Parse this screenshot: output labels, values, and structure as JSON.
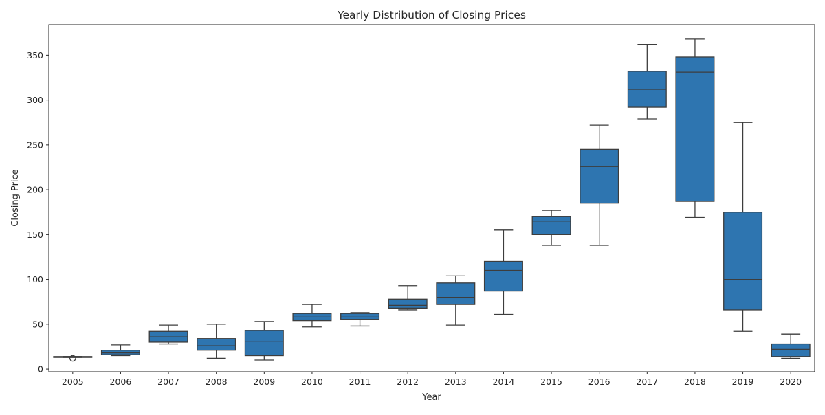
{
  "chart_data": {
    "type": "box",
    "title": "Yearly Distribution of Closing Prices",
    "xlabel": "Year",
    "ylabel": "Closing Price",
    "ylim": [
      -3,
      384
    ],
    "y_ticks": [
      0,
      50,
      100,
      150,
      200,
      250,
      300,
      350
    ],
    "grid": false,
    "colors": {
      "box_fill": "#2e75b0",
      "line": "#3d3d3d"
    },
    "categories": [
      "2005",
      "2006",
      "2007",
      "2008",
      "2009",
      "2010",
      "2011",
      "2012",
      "2013",
      "2014",
      "2015",
      "2016",
      "2017",
      "2018",
      "2019",
      "2020"
    ],
    "boxes": [
      {
        "year": "2005",
        "whisker_low": 13,
        "q1": 13,
        "median": 13.5,
        "q3": 14,
        "whisker_high": 14,
        "outliers": [
          12
        ]
      },
      {
        "year": "2006",
        "whisker_low": 15,
        "q1": 16,
        "median": 18,
        "q3": 21,
        "whisker_high": 27,
        "outliers": []
      },
      {
        "year": "2007",
        "whisker_low": 28,
        "q1": 30,
        "median": 36,
        "q3": 42,
        "whisker_high": 49,
        "outliers": []
      },
      {
        "year": "2008",
        "whisker_low": 12,
        "q1": 21,
        "median": 26,
        "q3": 34,
        "whisker_high": 50,
        "outliers": []
      },
      {
        "year": "2009",
        "whisker_low": 10,
        "q1": 15,
        "median": 31,
        "q3": 43,
        "whisker_high": 53,
        "outliers": []
      },
      {
        "year": "2010",
        "whisker_low": 47,
        "q1": 54,
        "median": 58,
        "q3": 62,
        "whisker_high": 72,
        "outliers": []
      },
      {
        "year": "2011",
        "whisker_low": 48,
        "q1": 55,
        "median": 58,
        "q3": 62,
        "whisker_high": 63,
        "outliers": []
      },
      {
        "year": "2012",
        "whisker_low": 66,
        "q1": 68,
        "median": 71,
        "q3": 78,
        "whisker_high": 93,
        "outliers": []
      },
      {
        "year": "2013",
        "whisker_low": 49,
        "q1": 72,
        "median": 80,
        "q3": 96,
        "whisker_high": 104,
        "outliers": []
      },
      {
        "year": "2014",
        "whisker_low": 61,
        "q1": 87,
        "median": 110,
        "q3": 120,
        "whisker_high": 155,
        "outliers": []
      },
      {
        "year": "2015",
        "whisker_low": 138,
        "q1": 150,
        "median": 165,
        "q3": 170,
        "whisker_high": 177,
        "outliers": []
      },
      {
        "year": "2016",
        "whisker_low": 138,
        "q1": 185,
        "median": 226,
        "q3": 245,
        "whisker_high": 272,
        "outliers": []
      },
      {
        "year": "2017",
        "whisker_low": 279,
        "q1": 292,
        "median": 312,
        "q3": 332,
        "whisker_high": 362,
        "outliers": []
      },
      {
        "year": "2018",
        "whisker_low": 169,
        "q1": 187,
        "median": 331,
        "q3": 348,
        "whisker_high": 368,
        "outliers": []
      },
      {
        "year": "2019",
        "whisker_low": 42,
        "q1": 66,
        "median": 100,
        "q3": 175,
        "whisker_high": 275,
        "outliers": []
      },
      {
        "year": "2020",
        "whisker_low": 12,
        "q1": 14,
        "median": 22,
        "q3": 28,
        "whisker_high": 39,
        "outliers": []
      }
    ]
  }
}
